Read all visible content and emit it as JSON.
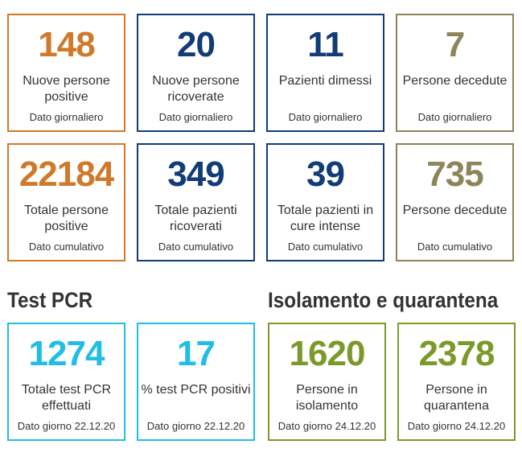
{
  "colors": {
    "orange": "#d0792a",
    "navy": "#123c78",
    "olive": "#8d8458",
    "cyan": "#20bde6",
    "green": "#7b9a2a"
  },
  "daily": [
    {
      "value": "148",
      "label": "Nuove persone positive",
      "note": "Dato giornaliero"
    },
    {
      "value": "20",
      "label": "Nuove persone ricoverate",
      "note": "Dato giornaliero"
    },
    {
      "value": "11",
      "label": "Pazienti dimessi",
      "note": "Dato giornaliero"
    },
    {
      "value": "7",
      "label": "Persone decedute",
      "note": "Dato giornaliero"
    }
  ],
  "cumulative": [
    {
      "value": "22184",
      "label": "Totale persone positive",
      "note": "Dato cumulativo"
    },
    {
      "value": "349",
      "label": "Totale pazienti ricoverati",
      "note": "Dato cumulativo"
    },
    {
      "value": "39",
      "label": "Totale pazienti in cure intense",
      "note": "Dato cumulativo"
    },
    {
      "value": "735",
      "label": "Persone decedute",
      "note": "Dato cumulativo"
    }
  ],
  "test_pcr": {
    "title": "Test PCR",
    "cards": [
      {
        "value": "1274",
        "label": "Totale test PCR effettuati",
        "note": "Dato giorno 22.12.20"
      },
      {
        "value": "17",
        "label": "% test PCR positivi",
        "note": "Dato giorno 22.12.20"
      }
    ]
  },
  "isolamento": {
    "title": "Isolamento e quarantena",
    "cards": [
      {
        "value": "1620",
        "label": "Persone in isolamento",
        "note": "Dato giorno 24.12.20"
      },
      {
        "value": "2378",
        "label": "Persone in quarantena",
        "note": "Dato giorno 24.12.20"
      }
    ]
  }
}
